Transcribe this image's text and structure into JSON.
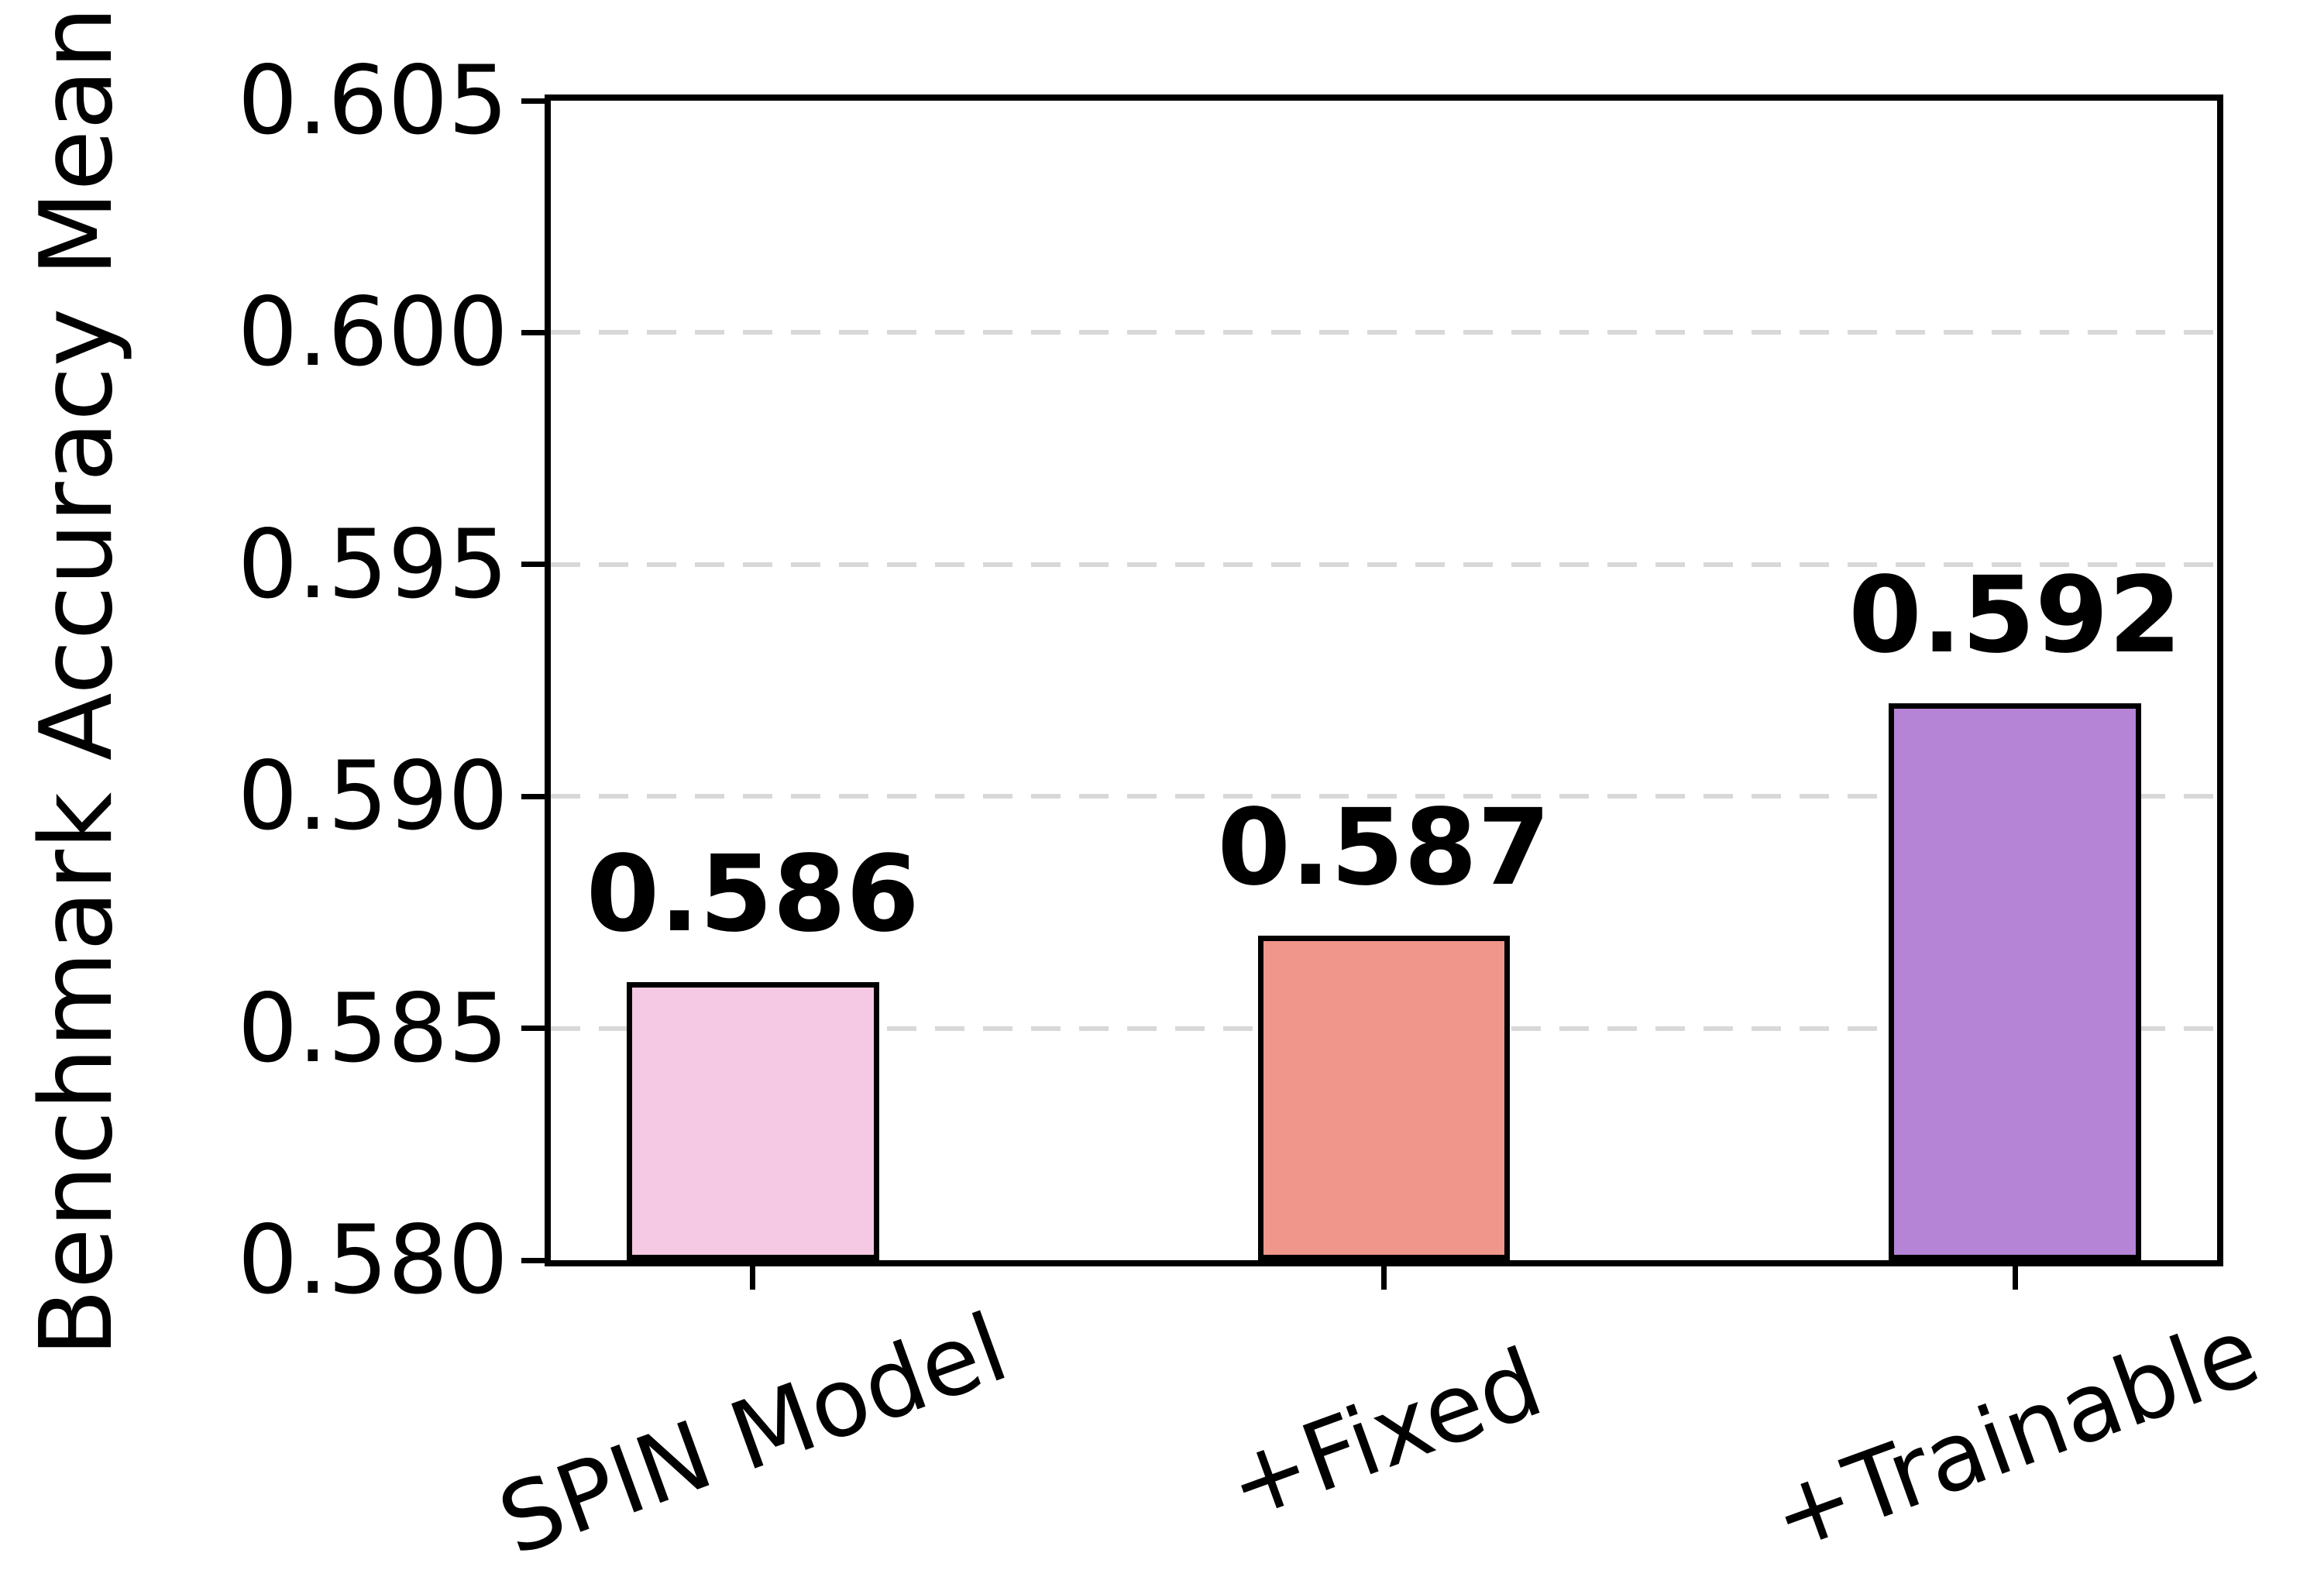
{
  "chart_data": {
    "type": "bar",
    "title": "",
    "xlabel": "",
    "ylabel": "Benchmark Accuracy Mean",
    "categories": [
      "SPIN Model",
      "+Fixed",
      "+Trainable"
    ],
    "values": [
      0.586,
      0.587,
      0.592
    ],
    "value_labels": [
      "0.586",
      "0.587",
      "0.592"
    ],
    "bar_colors": [
      "#F5C8E3",
      "#F0968B",
      "#B584D6"
    ],
    "bar_edge_color": "#000000",
    "ylim": [
      0.58,
      0.605
    ],
    "yticks": [
      0.58,
      0.585,
      0.59,
      0.595,
      0.6,
      0.605
    ],
    "ytick_labels": [
      "0.580",
      "0.585",
      "0.590",
      "0.595",
      "0.600",
      "0.605"
    ],
    "grid": "horizontal dashed gridlines at interior y-ticks",
    "grid_color": "#d8d8d8",
    "x_label_rotation_deg": 20,
    "legend_position": "none"
  }
}
